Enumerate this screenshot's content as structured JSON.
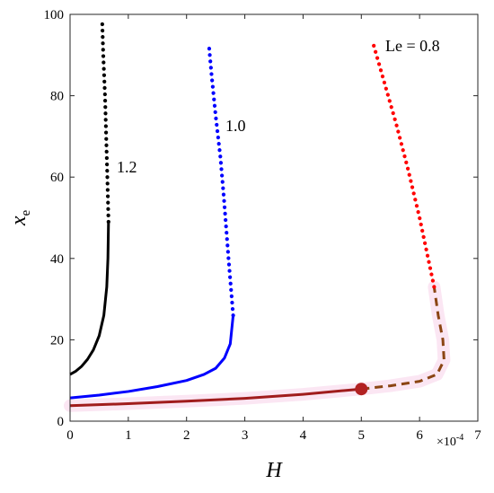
{
  "chart_data": {
    "type": "line",
    "title": "",
    "xlabel": "H",
    "ylabel": "x",
    "ylabel_subscript": "e",
    "x_exponent": {
      "base": "×10",
      "power": "-4"
    },
    "xlim": [
      0,
      7
    ],
    "ylim": [
      0,
      100
    ],
    "x_ticks": [
      "0",
      "1",
      "2",
      "3",
      "4",
      "5",
      "6",
      "7"
    ],
    "y_ticks": [
      "0",
      "20",
      "40",
      "60",
      "80",
      "100"
    ],
    "grid": false,
    "series": [
      {
        "name": "1.2",
        "color": "#000000",
        "segments": [
          {
            "style": "solid",
            "points": [
              [
                0,
                11.5
              ],
              [
                0.1,
                12.3
              ],
              [
                0.2,
                13.5
              ],
              [
                0.3,
                15.2
              ],
              [
                0.4,
                17.5
              ],
              [
                0.5,
                21
              ],
              [
                0.58,
                26
              ],
              [
                0.63,
                33
              ],
              [
                0.65,
                40
              ],
              [
                0.66,
                49
              ]
            ]
          },
          {
            "style": "dotted",
            "points": [
              [
                0.66,
                49
              ],
              [
                0.64,
                60
              ],
              [
                0.62,
                70
              ],
              [
                0.6,
                80
              ],
              [
                0.57,
                90
              ],
              [
                0.55,
                99
              ]
            ]
          }
        ]
      },
      {
        "name": "1.0",
        "color": "#0000ff",
        "segments": [
          {
            "style": "solid",
            "points": [
              [
                0,
                5.7
              ],
              [
                0.5,
                6.4
              ],
              [
                1.0,
                7.3
              ],
              [
                1.5,
                8.5
              ],
              [
                2.0,
                10
              ],
              [
                2.3,
                11.5
              ],
              [
                2.5,
                13
              ],
              [
                2.65,
                15.5
              ],
              [
                2.75,
                19
              ],
              [
                2.8,
                26
              ]
            ]
          },
          {
            "style": "dotted",
            "points": [
              [
                2.8,
                26
              ],
              [
                2.72,
                40
              ],
              [
                2.64,
                55
              ],
              [
                2.58,
                65
              ],
              [
                2.5,
                75
              ],
              [
                2.43,
                85
              ],
              [
                2.38,
                93
              ]
            ]
          }
        ]
      },
      {
        "name": "Le = 0.8",
        "color": "#a01c1c",
        "segments": [
          {
            "style": "solid",
            "points": [
              [
                0,
                3.8
              ],
              [
                1,
                4.3
              ],
              [
                2,
                4.9
              ],
              [
                3,
                5.6
              ],
              [
                4,
                6.6
              ],
              [
                5,
                7.9
              ]
            ]
          },
          {
            "style": "dashed",
            "color": "#8b4513",
            "points": [
              [
                5,
                7.9
              ],
              [
                5.5,
                8.7
              ],
              [
                6.0,
                9.8
              ],
              [
                6.3,
                11.5
              ],
              [
                6.42,
                15
              ],
              [
                6.4,
                20
              ],
              [
                6.32,
                26
              ],
              [
                6.25,
                33
              ]
            ]
          },
          {
            "style": "dotted",
            "color": "#ff0000",
            "points": [
              [
                6.25,
                33
              ],
              [
                6.0,
                50
              ],
              [
                5.8,
                62
              ],
              [
                5.6,
                73
              ],
              [
                5.4,
                83
              ],
              [
                5.2,
                93
              ]
            ]
          }
        ]
      }
    ],
    "markers": [
      {
        "x": 5,
        "y": 7.9,
        "color": "#b22222"
      }
    ]
  }
}
